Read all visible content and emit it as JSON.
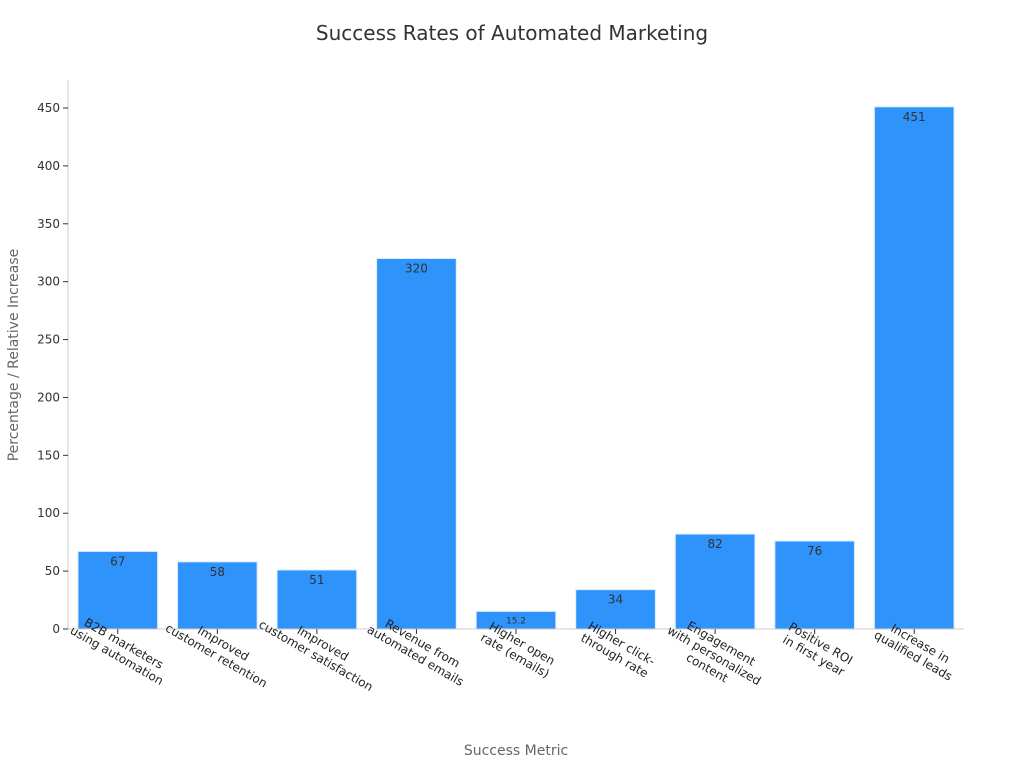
{
  "chart_data": {
    "type": "bar",
    "title": "Success Rates of Automated Marketing",
    "xlabel": "Success Metric",
    "ylabel": "Percentage / Relative Increase",
    "categories": [
      [
        "B2B marketers",
        "using automation"
      ],
      [
        "Improved",
        "customer retention"
      ],
      [
        "Improved",
        "customer satisfaction"
      ],
      [
        "Revenue from",
        "automated emails"
      ],
      [
        "Higher open",
        "rate (emails)"
      ],
      [
        "Higher click-",
        "through rate"
      ],
      [
        "Engagement",
        "with personalized",
        "content"
      ],
      [
        "Positive ROI",
        "in first year"
      ],
      [
        "Increase in",
        "qualified leads"
      ]
    ],
    "values": [
      67,
      58,
      51,
      320,
      15.2,
      34,
      82,
      76,
      451
    ],
    "value_labels": [
      "67",
      "58",
      "51",
      "320",
      "15.2",
      "34",
      "82",
      "76",
      "451"
    ],
    "ylim": [
      0,
      475
    ],
    "yticks": [
      0,
      50,
      100,
      150,
      200,
      250,
      300,
      350,
      400,
      450
    ],
    "bar_color": "#2e93fa",
    "grid": false,
    "legend": "none"
  }
}
